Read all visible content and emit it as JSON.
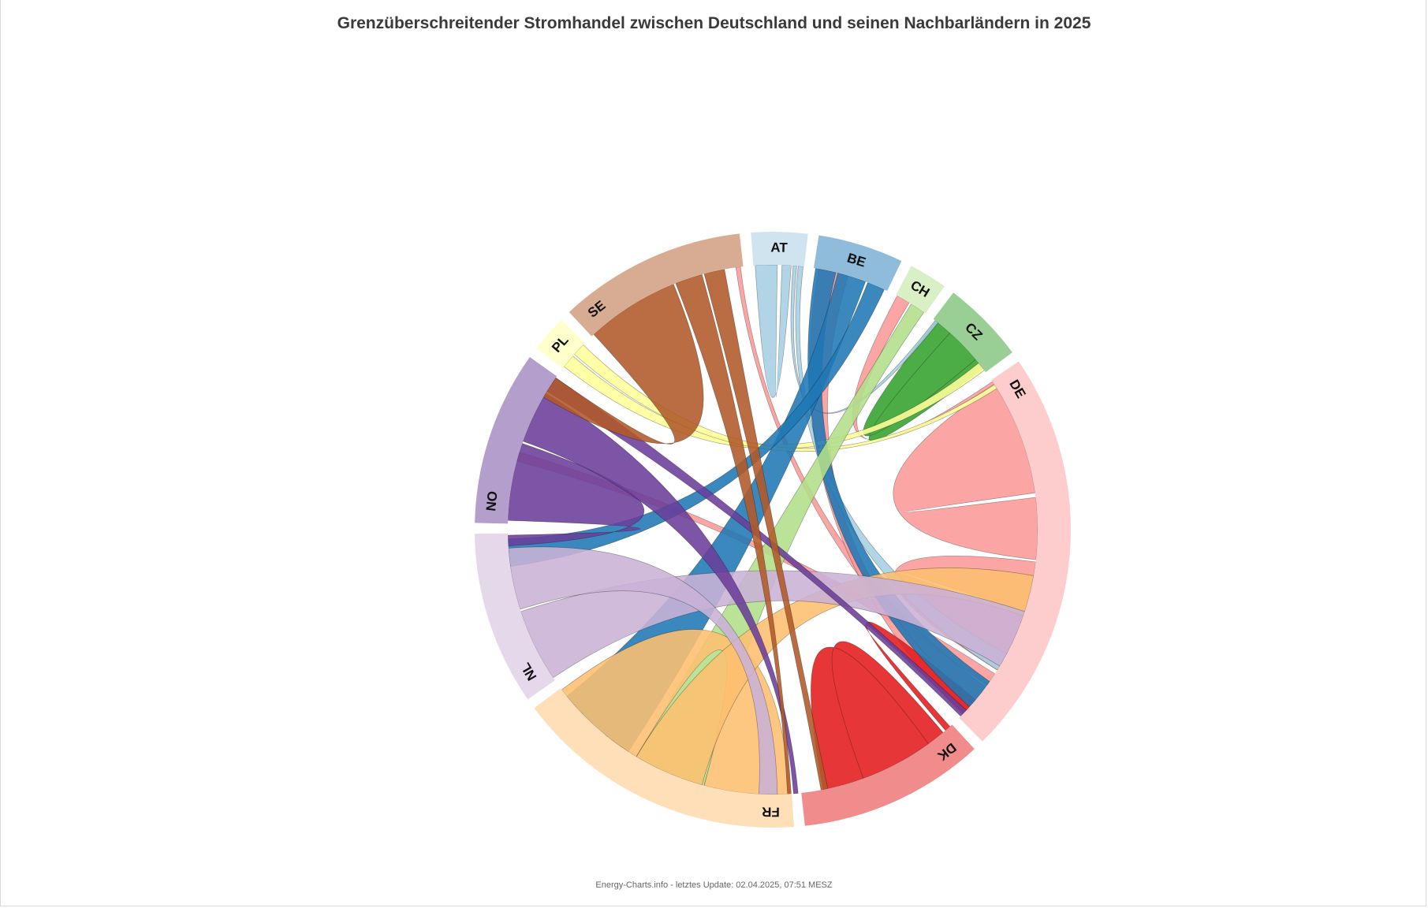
{
  "page": {
    "title": "Grenzüberschreitender Stromhandel zwischen Deutschland und seinen Nachbarländern in 2025",
    "credits": "Energy-Charts.info - letztes Update: 02.04.2025, 07:51 MESZ"
  },
  "chart_data": {
    "type": "chord",
    "title": "Grenzüberschreitender Stromhandel zwischen Deutschland und seinen Nachbarländern in 2025",
    "nodes": [
      {
        "id": "AT",
        "label": "AT",
        "color": "#a6cee3",
        "outer": "#cfe4ef",
        "start": -4.2,
        "end": 6.8
      },
      {
        "id": "BE",
        "label": "BE",
        "color": "#1f78b4",
        "outer": "#90bcdc",
        "start": 8.9,
        "end": 25.6
      },
      {
        "id": "CH",
        "label": "CH",
        "color": "#b2df8a",
        "outer": "#d9efc5",
        "start": 27.7,
        "end": 35.2
      },
      {
        "id": "CZ",
        "label": "CZ",
        "color": "#33a02c",
        "outer": "#99cf95",
        "start": 37.3,
        "end": 53.5
      },
      {
        "id": "DE",
        "label": "DE",
        "color": "#fb9a99",
        "outer": "#fdcccc",
        "start": 55.6,
        "end": 135.3
      },
      {
        "id": "DK",
        "label": "DK",
        "color": "#e31a1c",
        "outer": "#f18c8d",
        "start": 137.4,
        "end": 173.8
      },
      {
        "id": "FR",
        "label": "FR",
        "color": "#fdbf6f",
        "outer": "#fedfb7",
        "start": 175.9,
        "end": 233.2
      },
      {
        "id": "NL",
        "label": "NL",
        "color": "#cab2d6",
        "outer": "#e4d8ea",
        "start": 235.3,
        "end": 269.2
      },
      {
        "id": "NO",
        "label": "NO",
        "color": "#6a3d9a",
        "outer": "#b49ecc",
        "start": 271.3,
        "end": 305.4
      },
      {
        "id": "PL",
        "label": "PL",
        "color": "#ffff99",
        "outer": "#ffffcc",
        "start": 307.5,
        "end": 314.8
      },
      {
        "id": "SE",
        "label": "SE",
        "color": "#b15928",
        "outer": "#d8ac93",
        "start": 316.9,
        "end": 353.6
      }
    ],
    "links": [
      {
        "from": "DE",
        "s1": 83.0,
        "s2": 96.5,
        "to": "DE",
        "t1": 57.0,
        "t2": 82.0
      },
      {
        "from": "DE",
        "s1": 97.0,
        "s2": 108.0,
        "to": "DE",
        "t1": 109.0,
        "t2": 122.0
      },
      {
        "from": "DE",
        "s1": 56.0,
        "s2": 56.7,
        "to": "CH",
        "t1": 28.0,
        "t2": 31.0
      },
      {
        "from": "DE",
        "s1": 123.0,
        "s2": 126.0,
        "to": "NO",
        "t1": 285.0,
        "t2": 287.0
      },
      {
        "from": "DE",
        "s1": 126.5,
        "s2": 130.0,
        "to": "SE",
        "t1": 352.0,
        "t2": 353.0
      },
      {
        "from": "DE",
        "s1": 130.5,
        "s2": 134.2,
        "to": "BE",
        "t1": 10.0,
        "t2": 16.5
      },
      {
        "from": "DK",
        "s1": 138.0,
        "s2": 139.3,
        "to": "DE",
        "t1": 130.0,
        "t2": 134.0
      },
      {
        "from": "DK",
        "s1": 140.0,
        "s2": 169.0,
        "to": "DK",
        "t1": 144.0,
        "t2": 160.0
      },
      {
        "from": "CZ",
        "s1": 38.0,
        "s2": 52.5,
        "to": "CZ",
        "t1": 42.0,
        "t2": 50.0
      },
      {
        "from": "PL",
        "s1": 308.0,
        "s2": 311.0,
        "to": "CZ",
        "t1": 51.0,
        "t2": 53.0
      },
      {
        "from": "PL",
        "s1": 311.5,
        "s2": 314.3,
        "to": "DE",
        "t1": 56.8,
        "t2": 57.8
      },
      {
        "from": "AT",
        "s1": -3.8,
        "s2": 1.0,
        "to": "AT",
        "t1": 2.0,
        "t2": 4.0
      },
      {
        "from": "AT",
        "s1": 4.4,
        "s2": 5.2,
        "to": "CZ",
        "t1": 37.8,
        "t2": 38.6
      },
      {
        "from": "AT",
        "s1": 5.5,
        "s2": 6.6,
        "to": "DE",
        "t1": 118.0,
        "t2": 122.0
      },
      {
        "from": "BE",
        "s1": 9.3,
        "s2": 13.8,
        "to": "DE",
        "t1": 125.0,
        "t2": 132.0
      },
      {
        "from": "BE",
        "s1": 14.2,
        "s2": 20.5,
        "to": "FR",
        "t1": 213.0,
        "t2": 231.0
      },
      {
        "from": "BE",
        "s1": 21.0,
        "s2": 24.9,
        "to": "NL",
        "t1": 262.0,
        "t2": 268.0
      },
      {
        "from": "CH",
        "s1": 31.5,
        "s2": 34.8,
        "to": "FR",
        "t1": 195.0,
        "t2": 211.0
      },
      {
        "from": "FR",
        "s1": 176.3,
        "s2": 195.0,
        "to": "FR",
        "t1": 211.0,
        "t2": 232.8
      },
      {
        "from": "FR",
        "s1": 195.5,
        "s2": 211.0,
        "to": "DE",
        "t1": 100.0,
        "t2": 109.0
      },
      {
        "from": "NL",
        "s1": 236.0,
        "s2": 252.0,
        "to": "DE",
        "t1": 108.0,
        "t2": 121.0
      },
      {
        "from": "NL",
        "s1": 252.5,
        "s2": 266.0,
        "to": "FR",
        "t1": 179.0,
        "t2": 183.0
      },
      {
        "from": "NO",
        "s1": 272.0,
        "s2": 289.0,
        "to": "NL",
        "t1": 266.5,
        "t2": 268.8
      },
      {
        "from": "NO",
        "s1": 289.5,
        "s2": 301.0,
        "to": "FR",
        "t1": 174.5,
        "t2": 175.5
      },
      {
        "from": "NO",
        "s1": 301.5,
        "s2": 305.0,
        "to": "DE",
        "t1": 133.0,
        "t2": 134.8
      },
      {
        "from": "SE",
        "s1": 317.5,
        "s2": 338.0,
        "to": "NO",
        "t1": 300.0,
        "t2": 305.0
      },
      {
        "from": "SE",
        "s1": 338.5,
        "s2": 344.5,
        "to": "FR",
        "t1": 176.0,
        "t2": 176.8
      },
      {
        "from": "SE",
        "s1": 345.0,
        "s2": 349.5,
        "to": "DK",
        "t1": 168.0,
        "t2": 169.5
      }
    ]
  }
}
